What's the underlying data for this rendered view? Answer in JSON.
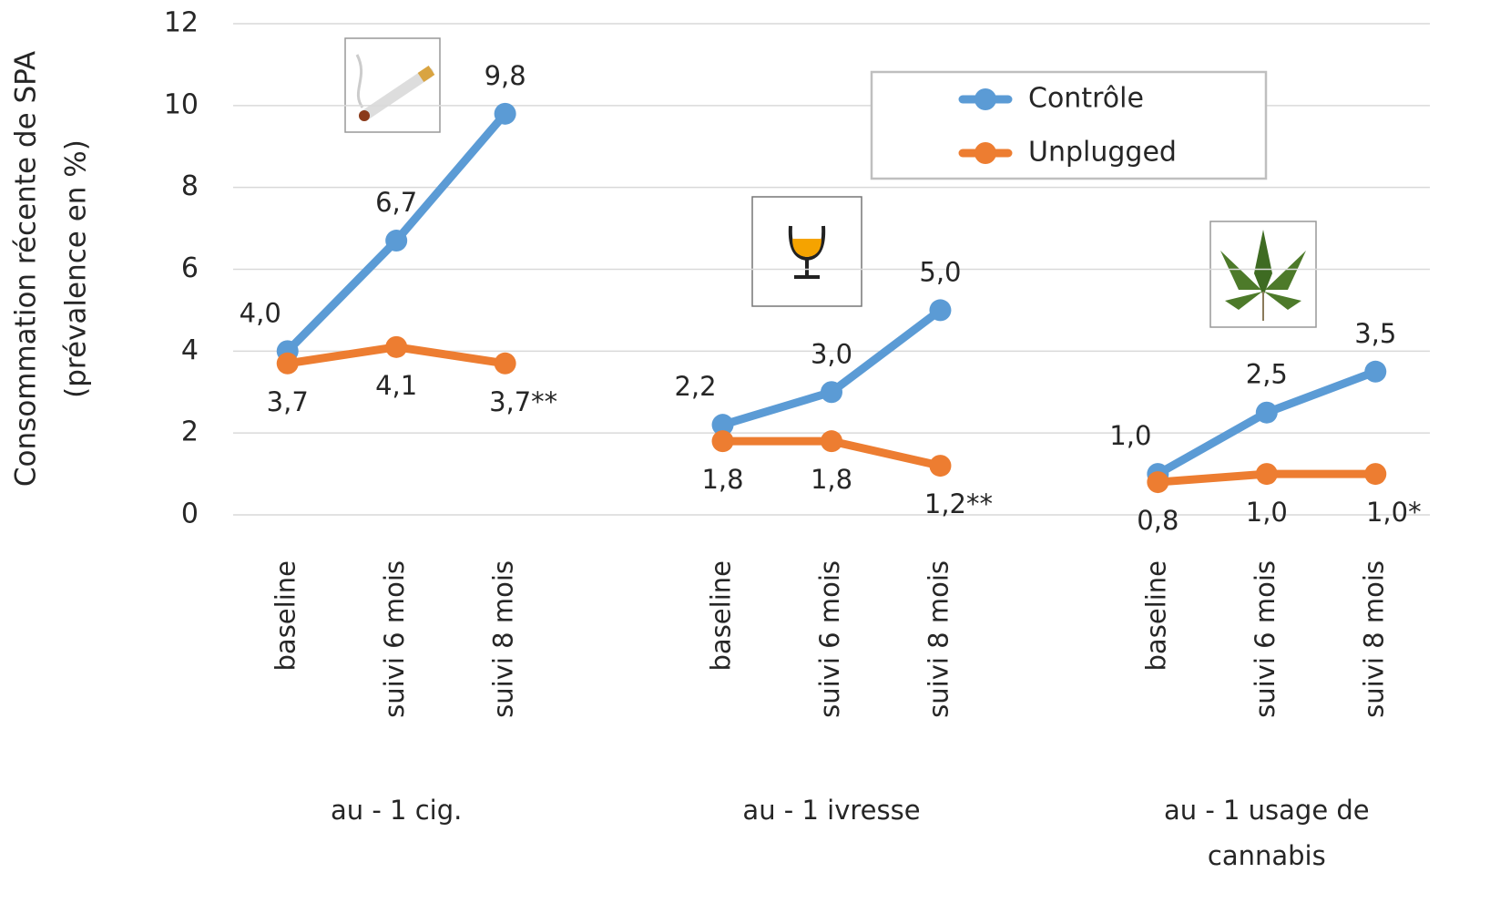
{
  "chart_data": {
    "type": "line",
    "ylabel": [
      "Consommation récente de SPA",
      "(prévalence en %)"
    ],
    "categories": [
      "baseline",
      "suivi 6 mois",
      "suivi 8 mois",
      null,
      "baseline",
      "suivi 6 mois",
      "suivi 8 mois",
      null,
      "baseline",
      "suivi 6 mois",
      "suivi 8 mois"
    ],
    "groups": [
      "au - 1 cig.",
      "au - 1 ivresse",
      "au - 1 usage de cannabis"
    ],
    "series": [
      {
        "name": "Contrôle",
        "color": "#5b9bd5",
        "values": [
          4.0,
          6.7,
          9.8,
          null,
          2.2,
          3.0,
          5.0,
          null,
          1.0,
          2.5,
          3.5
        ],
        "value_labels": [
          "4,0",
          "6,7",
          "9,8",
          null,
          "2,2",
          "3,0",
          "5,0",
          null,
          "1,0",
          "2,5",
          "3,5"
        ]
      },
      {
        "name": "Unplugged",
        "color": "#ed7d31",
        "values": [
          3.7,
          4.1,
          3.7,
          null,
          1.8,
          1.8,
          1.2,
          null,
          0.8,
          1.0,
          1.0
        ],
        "value_labels": [
          "3,7",
          "4,1",
          "3,7**",
          null,
          "1,8",
          "1,8",
          "1,2**",
          null,
          "0,8",
          "1,0",
          "1,0*"
        ]
      }
    ],
    "ylim": [
      0,
      12
    ],
    "yticks": [
      0,
      2,
      4,
      6,
      8,
      10,
      12
    ],
    "grid": true,
    "legend": "upper right"
  }
}
